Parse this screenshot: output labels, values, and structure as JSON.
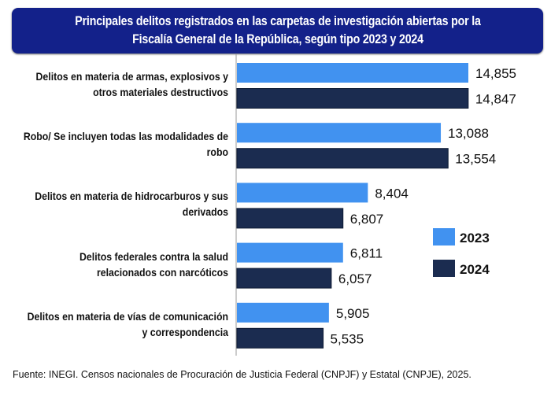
{
  "chart_data": {
    "type": "bar",
    "orientation": "horizontal",
    "title": "Principales delitos registrados en las carpetas de investigación abiertas por la Fiscalía General de la República, según tipo 2023 y 2024",
    "categories": [
      "Delitos en materia de armas, explosivos y otros materiales destructivos",
      "Robo/ Se incluyen todas las modalidades de robo",
      "Delitos en materia de hidrocarburos y sus derivados",
      "Delitos federales contra la salud relacionados con narcóticos",
      "Delitos en materia de vías de comunicación y correspondencia"
    ],
    "series": [
      {
        "name": "2023",
        "color": "#4192f0",
        "values": [
          14855,
          13088,
          8404,
          6811,
          5905
        ],
        "labels": [
          "14,855",
          "13,088",
          "8,404",
          "6,811",
          "5,905"
        ]
      },
      {
        "name": "2024",
        "color": "#1b2c50",
        "values": [
          14847,
          13554,
          6807,
          6057,
          5535
        ],
        "labels": [
          "14,847",
          "13,554",
          "6,807",
          "6,057",
          "5,535"
        ]
      }
    ],
    "xlim": [
      0,
      16000
    ],
    "grid": false,
    "legend": "right"
  },
  "footer": "Fuente: INEGI. Censos nacionales de Procuración de Justicia Federal (CNPJF) y Estatal (CNPJE), 2025.",
  "title_color": "#13218a"
}
